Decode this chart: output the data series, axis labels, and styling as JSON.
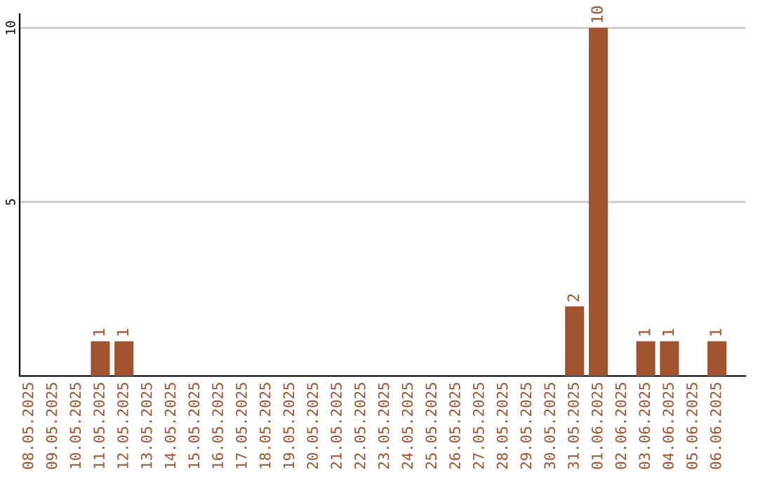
{
  "chart_data": {
    "type": "bar",
    "categories": [
      "08.05.2025",
      "09.05.2025",
      "10.05.2025",
      "11.05.2025",
      "12.05.2025",
      "13.05.2025",
      "14.05.2025",
      "15.05.2025",
      "16.05.2025",
      "17.05.2025",
      "18.05.2025",
      "19.05.2025",
      "20.05.2025",
      "21.05.2025",
      "22.05.2025",
      "23.05.2025",
      "24.05.2025",
      "25.05.2025",
      "26.05.2025",
      "27.05.2025",
      "28.05.2025",
      "29.05.2025",
      "30.05.2025",
      "31.05.2025",
      "01.06.2025",
      "02.06.2025",
      "03.06.2025",
      "04.06.2025",
      "05.06.2025",
      "06.06.2025"
    ],
    "values": [
      0,
      0,
      0,
      1,
      1,
      0,
      0,
      0,
      0,
      0,
      0,
      0,
      0,
      0,
      0,
      0,
      0,
      0,
      0,
      0,
      0,
      0,
      0,
      2,
      10,
      0,
      1,
      1,
      0,
      1
    ],
    "value_labels": [
      null,
      null,
      null,
      "1",
      "1",
      null,
      null,
      null,
      null,
      null,
      null,
      null,
      null,
      null,
      null,
      null,
      null,
      null,
      null,
      null,
      null,
      null,
      null,
      "2",
      "10",
      null,
      "1",
      "1",
      null,
      "1"
    ],
    "color": "#a0522d",
    "ylim": [
      0,
      10.4
    ],
    "yticks": [
      5,
      10
    ],
    "grid": "y",
    "legend": false
  }
}
